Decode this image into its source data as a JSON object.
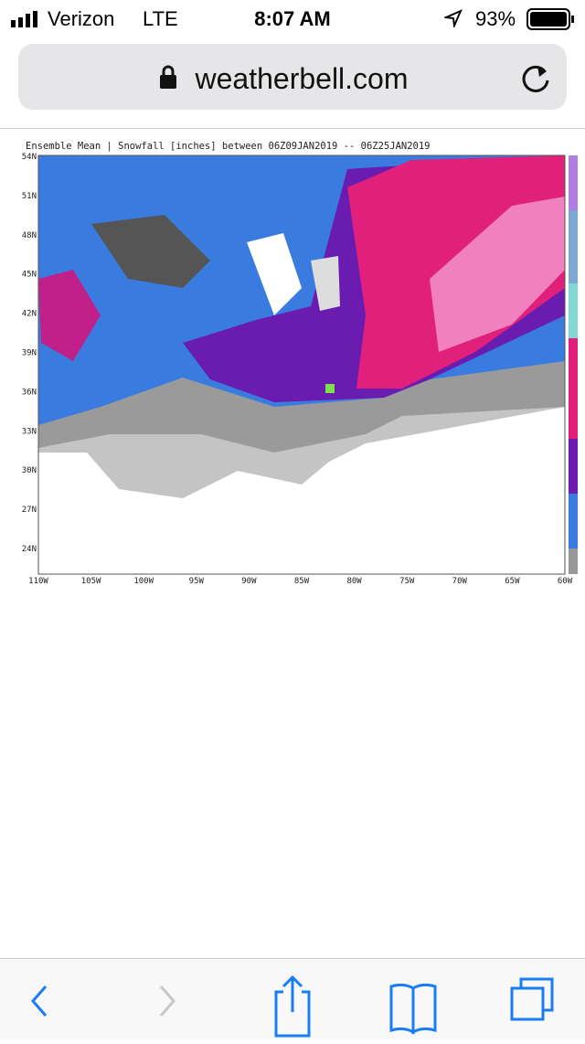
{
  "status_bar": {
    "carrier": "Verizon",
    "network": "LTE",
    "time": "8:07 AM",
    "battery": "93%"
  },
  "address_bar": {
    "url": "weatherbell.com"
  },
  "map": {
    "title": "Ensemble Mean | Snowfall [inches] between 06Z09JAN2019 -- 06Z25JAN2019",
    "lat_labels": [
      "54N",
      "51N",
      "48N",
      "45N",
      "42N",
      "39N",
      "36N",
      "33N",
      "30N",
      "27N",
      "24N"
    ],
    "lon_labels": [
      "110W",
      "105W",
      "100W",
      "95W",
      "90W",
      "85W",
      "80W",
      "75W",
      "70W",
      "65W",
      "60W"
    ]
  }
}
